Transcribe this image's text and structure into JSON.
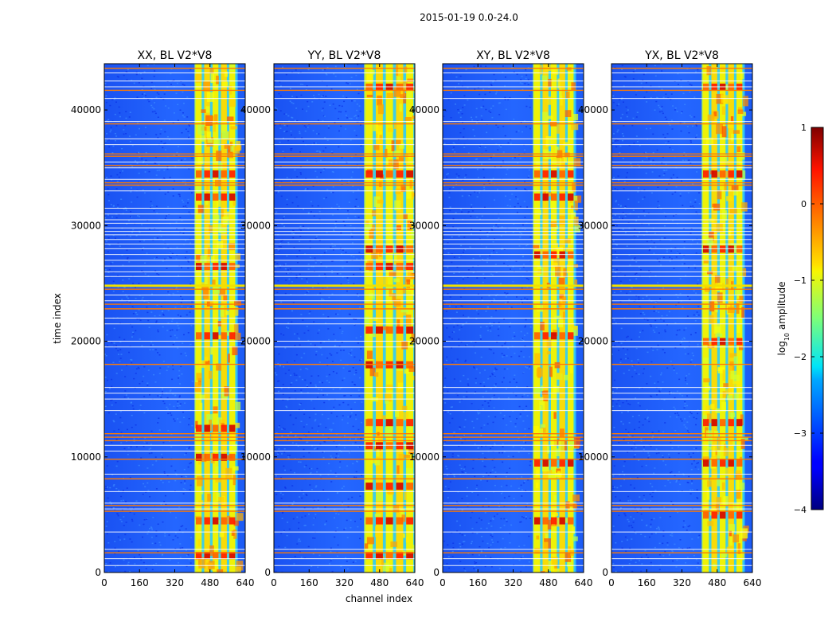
{
  "figure": {
    "suptitle": "2015-01-19 0.0-24.0",
    "xlabel": "channel index",
    "ylabel": "time index"
  },
  "colors": {
    "background_mid": "#1f63ff",
    "band_mid": "#ffe600",
    "rfi_line": "#ff7a00",
    "white_line": "#ffffff"
  },
  "chart_data": [
    {
      "type": "heatmap",
      "title": "XX, BL V2*V8",
      "xlabel": "",
      "ylabel": "time index",
      "xlim": [
        0,
        640
      ],
      "ylim": [
        0,
        44000
      ],
      "xticks": [
        0,
        160,
        320,
        480,
        640
      ],
      "yticks": [
        0,
        10000,
        20000,
        30000,
        40000
      ],
      "xtick_labels": [
        "0",
        "160",
        "320",
        "480",
        "640"
      ],
      "ytick_labels": [
        "0",
        "10000",
        "20000",
        "30000",
        "40000"
      ],
      "bright_band_channels": [
        410,
        600
      ],
      "colorscale": "jet",
      "value_range": [
        -4,
        1
      ],
      "hot_spots_time": [
        34500,
        32500,
        26500,
        20500,
        12500,
        10000,
        4500,
        1500
      ]
    },
    {
      "type": "heatmap",
      "title": "YY, BL V2*V8",
      "xlabel": "channel index",
      "ylabel": "",
      "xlim": [
        0,
        640
      ],
      "ylim": [
        0,
        44000
      ],
      "xticks": [
        0,
        160,
        320,
        480,
        640
      ],
      "yticks": [
        0,
        10000,
        20000,
        30000,
        40000
      ],
      "xtick_labels": [
        "0",
        "160",
        "320",
        "480",
        "640"
      ],
      "ytick_labels": [
        "0",
        "10000",
        "20000",
        "30000",
        "40000"
      ],
      "bright_band_channels": [
        410,
        640
      ],
      "colorscale": "jet",
      "value_range": [
        -4,
        1
      ],
      "hot_spots_time": [
        42000,
        34500,
        28000,
        26500,
        21000,
        18000,
        13000,
        11000,
        7500,
        4500,
        1500
      ]
    },
    {
      "type": "heatmap",
      "title": "XY, BL V2*V8",
      "xlabel": "",
      "ylabel": "",
      "xlim": [
        0,
        640
      ],
      "ylim": [
        0,
        44000
      ],
      "xticks": [
        0,
        160,
        320,
        480,
        640
      ],
      "yticks": [
        0,
        10000,
        20000,
        30000,
        40000
      ],
      "xtick_labels": [
        "0",
        "160",
        "320",
        "480",
        "640"
      ],
      "ytick_labels": [
        "0",
        "10000",
        "20000",
        "30000",
        "40000"
      ],
      "bright_band_channels": [
        410,
        600
      ],
      "colorscale": "jet",
      "value_range": [
        -4,
        1
      ],
      "hot_spots_time": [
        34500,
        32500,
        27500,
        20500,
        9500,
        4500
      ]
    },
    {
      "type": "heatmap",
      "title": "YX, BL V2*V8",
      "xlabel": "",
      "ylabel": "",
      "xlim": [
        0,
        640
      ],
      "ylim": [
        0,
        44000
      ],
      "xticks": [
        0,
        160,
        320,
        480,
        640
      ],
      "yticks": [
        0,
        10000,
        20000,
        30000,
        40000
      ],
      "xtick_labels": [
        "0",
        "160",
        "320",
        "480",
        "640"
      ],
      "ytick_labels": [
        "0",
        "10000",
        "20000",
        "30000",
        "40000"
      ],
      "bright_band_channels": [
        410,
        600
      ],
      "colorscale": "jet",
      "value_range": [
        -4,
        1
      ],
      "hot_spots_time": [
        42000,
        34500,
        28000,
        20000,
        13000,
        9500,
        5000
      ]
    }
  ],
  "horizontal_lines_time": {
    "white": [
      43200,
      42500,
      42000,
      41000,
      39000,
      37500,
      37000,
      35500,
      35000,
      34000,
      33000,
      31500,
      31000,
      30500,
      30200,
      29800,
      29500,
      29200,
      28800,
      28400,
      28000,
      27500,
      27000,
      26500,
      26000,
      25600,
      24000,
      23500,
      22000,
      21500,
      20000,
      19500,
      18000,
      16000,
      15500,
      15000,
      14000,
      11000,
      10500,
      8500,
      7000,
      6000,
      5500,
      3500,
      2000,
      1200,
      600
    ],
    "orange": [
      43600,
      41700,
      38800,
      36200,
      36000,
      35200,
      33700,
      33500,
      24800,
      24500,
      23200,
      22800,
      18000,
      12000,
      11700,
      11400,
      9800,
      8100,
      5800,
      5300,
      1700
    ]
  },
  "colorbar": {
    "label_prefix": "log",
    "label_subscript": "10",
    "label_suffix": " amplitude",
    "range": [
      -4,
      1
    ],
    "ticks": [
      1,
      0,
      -1,
      -2,
      -3,
      -4
    ],
    "tick_labels": [
      "1",
      "0",
      "−1",
      "−2",
      "−3",
      "−4"
    ]
  }
}
